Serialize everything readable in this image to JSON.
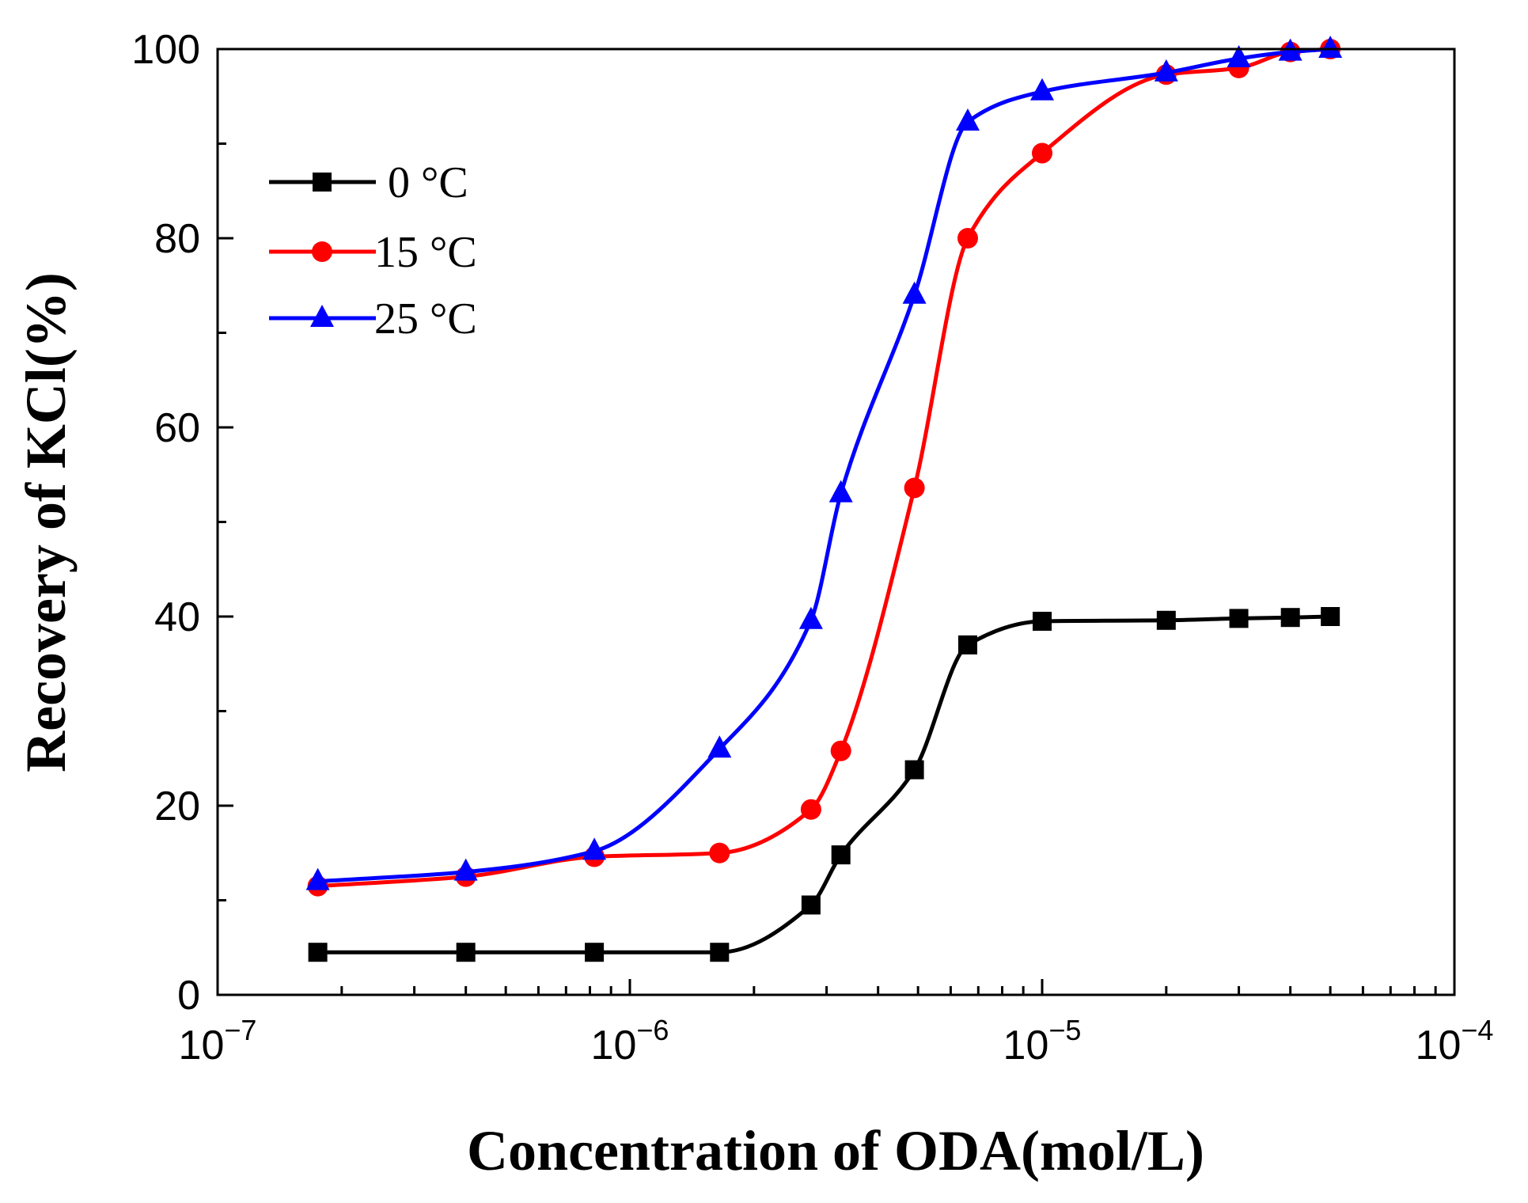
{
  "chart_data": {
    "type": "line",
    "x_scale": "log",
    "xlabel": "Concentration of ODA(mol/L)",
    "ylabel": "Recovery of KCl(%)",
    "xlim": [
      1e-07,
      0.0001
    ],
    "ylim": [
      0,
      100
    ],
    "x_ticks": [
      {
        "value": 1e-07,
        "base": "10",
        "exp": "−7"
      },
      {
        "value": 1e-06,
        "base": "10",
        "exp": "−6"
      },
      {
        "value": 1e-05,
        "base": "10",
        "exp": "−5"
      },
      {
        "value": 0.0001,
        "base": "10",
        "exp": "−4"
      }
    ],
    "y_ticks": [
      0,
      20,
      40,
      60,
      80,
      100
    ],
    "grid": false,
    "legend_position": "top-left",
    "series": [
      {
        "name": "0 °C",
        "color": "#000000",
        "marker": "square",
        "x": [
          1.75e-07,
          4e-07,
          8.2e-07,
          1.65e-06,
          2.75e-06,
          3.25e-06,
          4.9e-06,
          6.6e-06,
          1e-05,
          2e-05,
          3e-05,
          4e-05,
          5e-05
        ],
        "values": [
          4.5,
          4.5,
          4.5,
          4.5,
          9.5,
          14.8,
          23.8,
          37,
          39.5,
          39.6,
          39.8,
          39.9,
          40
        ]
      },
      {
        "name": "15 °C",
        "color": "#ff0000",
        "marker": "circle",
        "x": [
          1.75e-07,
          4e-07,
          8.2e-07,
          1.65e-06,
          2.75e-06,
          3.25e-06,
          4.9e-06,
          6.6e-06,
          1e-05,
          2e-05,
          3e-05,
          4e-05,
          5e-05
        ],
        "values": [
          11.5,
          12.5,
          14.6,
          15,
          19.6,
          25.8,
          53.6,
          80,
          89,
          97.3,
          98,
          99.7,
          100
        ]
      },
      {
        "name": "25 °C",
        "color": "#0000ff",
        "marker": "triangle",
        "x": [
          1.75e-07,
          4e-07,
          8.2e-07,
          1.65e-06,
          2.75e-06,
          3.25e-06,
          4.9e-06,
          6.6e-06,
          1e-05,
          2e-05,
          3e-05,
          4e-05,
          5e-05
        ],
        "values": [
          12,
          13,
          15.2,
          26,
          39.6,
          53,
          74,
          92.3,
          95.5,
          97.5,
          99,
          99.7,
          100
        ]
      }
    ]
  }
}
